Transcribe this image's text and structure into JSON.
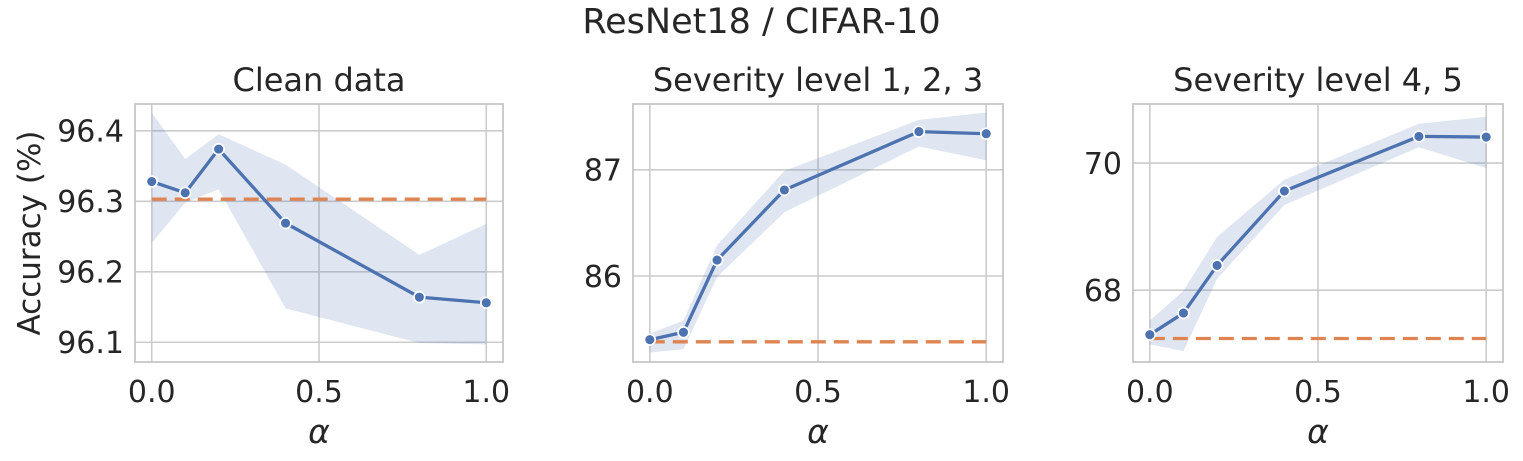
{
  "figure": {
    "title": "ResNet18 / CIFAR-10"
  },
  "colors": {
    "line": "#4c72b0",
    "marker_fill": "#4c72b0",
    "marker_edge": "#ffffff",
    "band_fill": "#4c72b0",
    "band_opacity": 0.18,
    "baseline": "#dd8452",
    "grid": "#cccccc",
    "spine": "#c6c6c6",
    "text": "#262626",
    "background": "#ffffff"
  },
  "chart_data": [
    {
      "type": "line",
      "title": "Clean data",
      "xlabel": "α",
      "ylabel": "Accuracy (%)",
      "legend_position": "none",
      "grid": true,
      "x": [
        0.0,
        0.1,
        0.2,
        0.4,
        0.8,
        1.0
      ],
      "y": [
        96.328,
        96.312,
        96.374,
        96.269,
        96.164,
        96.156
      ],
      "band_low": [
        96.241,
        96.298,
        96.317,
        96.148,
        96.099,
        96.097
      ],
      "band_high": [
        96.426,
        96.36,
        96.395,
        96.352,
        96.224,
        96.268
      ],
      "baseline": 96.303,
      "xlim": [
        -0.05,
        1.05
      ],
      "ylim": [
        96.072,
        96.438
      ],
      "xticks": [
        0.0,
        0.5,
        1.0
      ],
      "xtick_labels": [
        "0.0",
        "0.5",
        "1.0"
      ],
      "yticks": [
        96.1,
        96.2,
        96.3,
        96.4
      ],
      "ytick_labels": [
        "96.1",
        "96.2",
        "96.3",
        "96.4"
      ]
    },
    {
      "type": "line",
      "title": "Severity level 1, 2, 3",
      "xlabel": "α",
      "ylabel": "",
      "legend_position": "none",
      "grid": true,
      "x": [
        0.0,
        0.1,
        0.2,
        0.4,
        0.8,
        1.0
      ],
      "y": [
        85.4,
        85.47,
        86.15,
        86.81,
        87.36,
        87.34
      ],
      "band_low": [
        85.28,
        85.31,
        85.99,
        86.6,
        87.22,
        87.09
      ],
      "band_high": [
        85.46,
        85.58,
        86.29,
        86.99,
        87.47,
        87.54
      ],
      "baseline": 85.38,
      "xlim": [
        -0.05,
        1.05
      ],
      "ylim": [
        85.19,
        87.62
      ],
      "xticks": [
        0.0,
        0.5,
        1.0
      ],
      "xtick_labels": [
        "0.0",
        "0.5",
        "1.0"
      ],
      "yticks": [
        86,
        87
      ],
      "ytick_labels": [
        "86",
        "87"
      ]
    },
    {
      "type": "line",
      "title": "Severity level 4, 5",
      "xlabel": "α",
      "ylabel": "",
      "legend_position": "none",
      "grid": true,
      "x": [
        0.0,
        0.1,
        0.2,
        0.4,
        0.8,
        1.0
      ],
      "y": [
        67.3,
        67.64,
        68.39,
        69.56,
        70.42,
        70.41
      ],
      "band_low": [
        67.15,
        67.04,
        68.18,
        69.34,
        70.25,
        69.92
      ],
      "band_high": [
        67.52,
        67.99,
        68.84,
        69.74,
        70.62,
        70.73
      ],
      "baseline": 67.24,
      "xlim": [
        -0.05,
        1.05
      ],
      "ylim": [
        66.87,
        70.93
      ],
      "xticks": [
        0.0,
        0.5,
        1.0
      ],
      "xtick_labels": [
        "0.0",
        "0.5",
        "1.0"
      ],
      "yticks": [
        68,
        70
      ],
      "ytick_labels": [
        "68",
        "70"
      ]
    }
  ]
}
